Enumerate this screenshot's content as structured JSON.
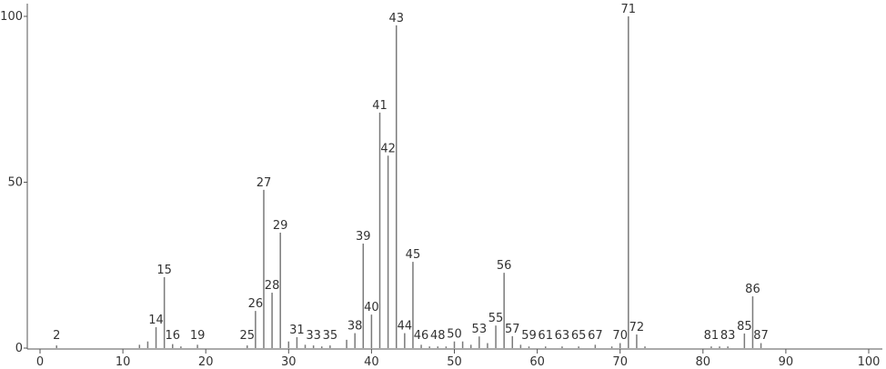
{
  "chart_data": {
    "type": "stick",
    "color": "#7a7a7a",
    "x": [
      2,
      12,
      13,
      14,
      15,
      16,
      17,
      19,
      25,
      26,
      27,
      28,
      29,
      30,
      31,
      32,
      33,
      34,
      35,
      37,
      38,
      39,
      40,
      41,
      42,
      43,
      44,
      45,
      46,
      47,
      48,
      49,
      50,
      51,
      52,
      53,
      54,
      55,
      56,
      57,
      58,
      59,
      61,
      63,
      65,
      67,
      69,
      70,
      71,
      72,
      73,
      81,
      82,
      83,
      85,
      86,
      87
    ],
    "values": [
      0.8,
      1,
      2,
      6.3,
      21.4,
      1.2,
      0.5,
      1,
      0.8,
      11.2,
      47.7,
      16.7,
      34.8,
      2,
      3.3,
      1,
      0.8,
      0.5,
      0.8,
      2.5,
      4.5,
      31.5,
      10.1,
      71,
      58,
      97.3,
      4.5,
      26,
      1,
      0.5,
      0.5,
      0.5,
      2,
      2,
      1,
      3.5,
      1.5,
      6.8,
      22.7,
      3.6,
      1,
      0.5,
      0.5,
      0.5,
      0.5,
      1,
      0.5,
      1.5,
      100,
      4.1,
      0.5,
      0.5,
      0.5,
      0.5,
      4.4,
      15.6,
      1.5
    ],
    "labeled": [
      true,
      false,
      false,
      true,
      true,
      true,
      false,
      true,
      true,
      true,
      true,
      true,
      true,
      false,
      true,
      false,
      true,
      false,
      true,
      false,
      true,
      true,
      true,
      true,
      true,
      true,
      true,
      true,
      true,
      false,
      true,
      false,
      true,
      false,
      false,
      true,
      false,
      true,
      true,
      true,
      false,
      true,
      true,
      true,
      true,
      true,
      false,
      true,
      true,
      true,
      false,
      true,
      false,
      true,
      true,
      true,
      true
    ],
    "xlim": [
      0,
      100
    ],
    "ylim": [
      0,
      100
    ],
    "xticks": [
      0,
      10,
      20,
      30,
      40,
      50,
      60,
      70,
      80,
      90,
      100
    ],
    "yticks": [
      0,
      50,
      100
    ]
  }
}
